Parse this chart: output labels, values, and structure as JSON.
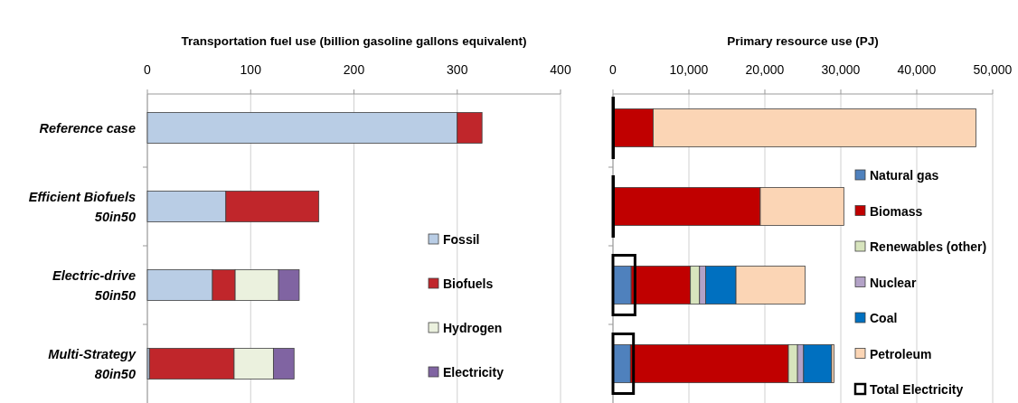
{
  "chart_data": [
    {
      "type": "bar",
      "orientation": "horizontal",
      "stacked": true,
      "xlabel": "Transportation fuel use (billion gasoline gallons equivalent)",
      "categories": [
        "Reference case",
        "Efficient Biofuels 50in50",
        "Electric-drive 50in50",
        "Multi-Strategy 80in50"
      ],
      "xlim": [
        0,
        400
      ],
      "xticks": [
        0,
        100,
        200,
        300,
        400
      ],
      "grid": "x",
      "legend": "bottom right",
      "series": [
        {
          "name": "Fossil",
          "color": "#b9cde5",
          "values": [
            300,
            76,
            63,
            2
          ]
        },
        {
          "name": "Biofuels",
          "color": "#c0262b",
          "values": [
            24,
            90,
            22,
            82
          ]
        },
        {
          "name": "Hydrogen",
          "color": "#ebf1de",
          "values": [
            0,
            0,
            42,
            38
          ]
        },
        {
          "name": "Electricity",
          "color": "#8064a2",
          "values": [
            0,
            0,
            20,
            20
          ]
        }
      ]
    },
    {
      "type": "bar",
      "orientation": "horizontal",
      "stacked": true,
      "xlabel": "Primary resource use (PJ)",
      "categories": [
        null,
        null,
        null,
        null
      ],
      "xlim": [
        0,
        50000
      ],
      "xticks": [
        0,
        {
          "value": 10000,
          "label": "10,000"
        },
        {
          "value": 20000,
          "label": "20,000"
        },
        {
          "value": 30000,
          "label": "30,000"
        },
        {
          "value": 40000,
          "label": "40,000"
        },
        {
          "value": 50000,
          "label": "50,000"
        }
      ],
      "grid": "x",
      "legend": "bottom right",
      "series": [
        {
          "name": "Natural gas",
          "color": "#4f81bd",
          "values": [
            0,
            0,
            2400,
            2300
          ]
        },
        {
          "name": "Biomass",
          "color": "#c00000",
          "values": [
            5300,
            19400,
            7800,
            20800
          ]
        },
        {
          "name": "Renewables (other)",
          "color": "#d7e4bd",
          "values": [
            0,
            0,
            1200,
            1200
          ]
        },
        {
          "name": "Nuclear",
          "color": "#b3a2c7",
          "values": [
            0,
            0,
            800,
            800
          ]
        },
        {
          "name": "Coal",
          "color": "#0070c0",
          "values": [
            0,
            0,
            4000,
            3700
          ]
        },
        {
          "name": "Petroleum",
          "color": "#fbd5b5",
          "values": [
            42500,
            11000,
            9100,
            300
          ]
        }
      ]
    },
    {
      "type": "bar",
      "orientation": "horizontal",
      "categories": [
        null,
        null,
        null,
        null
      ],
      "xlim": [
        0,
        50000
      ],
      "tick_labels": false,
      "legend": "bottom right",
      "series": [
        {
          "name": "Total Electricity",
          "color": "#000000",
          "values": [
            0,
            0,
            2900,
            2700
          ]
        }
      ]
    }
  ]
}
